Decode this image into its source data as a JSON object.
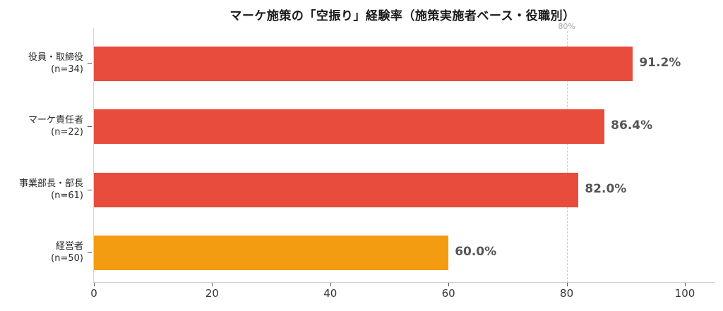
{
  "chart_data": {
    "type": "bar",
    "orientation": "horizontal",
    "title": "マーケ施策の「空振り」経験率（施策実施者ベース・役職別）",
    "xlabel": "",
    "ylabel": "",
    "xlim": [
      0,
      100
    ],
    "x_ticks": [
      0,
      20,
      40,
      60,
      80,
      100
    ],
    "grid": false,
    "legend": null,
    "reference_line": {
      "value": 80,
      "label": "80%",
      "style": "dashed"
    },
    "categories": [
      {
        "name": "役員・取締役",
        "n": "(n=34)"
      },
      {
        "name": "マーケ責任者",
        "n": "(n=22)"
      },
      {
        "name": "事業部長・部長",
        "n": "(n=61)"
      },
      {
        "name": "経営者",
        "n": "(n=50)"
      }
    ],
    "values": [
      91.2,
      86.4,
      82.0,
      60.0
    ],
    "value_labels": [
      "91.2%",
      "86.4%",
      "82.0%",
      "60.0%"
    ],
    "colors": [
      "#E74C3C",
      "#E74C3C",
      "#E74C3C",
      "#F39C12"
    ]
  }
}
